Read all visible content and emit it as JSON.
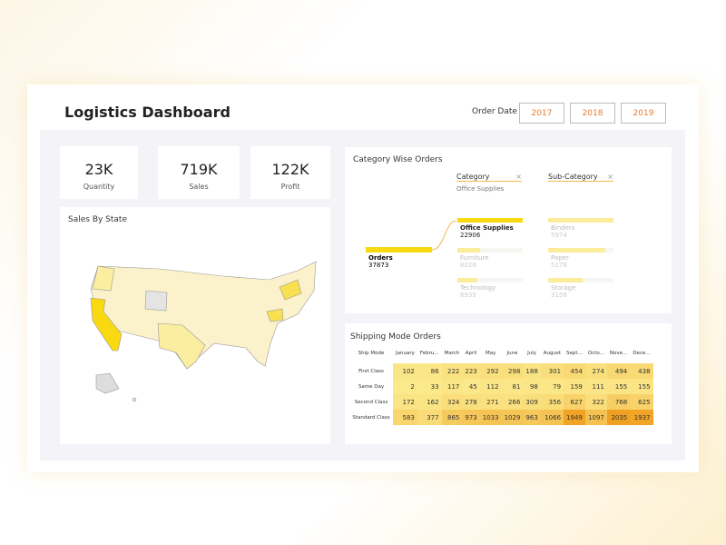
{
  "header": {
    "title": "Logistics Dashboard",
    "order_date_label": "Order Date",
    "years": [
      "2017",
      "2018",
      "2019"
    ]
  },
  "kpis": [
    {
      "value": "23K",
      "label": "Quantity"
    },
    {
      "value": "719K",
      "label": "Sales"
    },
    {
      "value": "122K",
      "label": "Profit"
    }
  ],
  "map": {
    "title": "Sales By State",
    "highlight_color": "#f9d90f",
    "base_color": "#fbf2cc"
  },
  "category": {
    "title": "Category Wise Orders",
    "root": {
      "label": "Orders",
      "value": "37873"
    },
    "filters": [
      {
        "label": "Category",
        "selected": "Office Supplies"
      },
      {
        "label": "Sub-Category",
        "selected": ""
      }
    ],
    "categories": [
      {
        "label": "Office Supplies",
        "value": "22906",
        "share": 1
      },
      {
        "label": "Furniture",
        "value": "8028",
        "share": 0.35
      },
      {
        "label": "Technology",
        "value": "6939",
        "share": 0.3
      }
    ],
    "subcategories": [
      {
        "label": "Binders",
        "value": "5974",
        "share": 1
      },
      {
        "label": "Paper",
        "value": "5178",
        "share": 0.87
      },
      {
        "label": "Storage",
        "value": "3158",
        "share": 0.53
      }
    ]
  },
  "shipping": {
    "title": "Shipping Mode Orders",
    "row_header": "Ship Mode",
    "months": [
      "January",
      "Febru...",
      "March",
      "April",
      "May",
      "June",
      "July",
      "August",
      "Sept...",
      "Octo...",
      "Nove...",
      "Dece..."
    ],
    "rows": [
      {
        "mode": "First Class",
        "values": [
          102,
          86,
          222,
          223,
          292,
          298,
          188,
          301,
          454,
          274,
          494,
          438
        ]
      },
      {
        "mode": "Same Day",
        "values": [
          2,
          33,
          117,
          45,
          112,
          81,
          98,
          79,
          159,
          111,
          155,
          155
        ]
      },
      {
        "mode": "Second Class",
        "values": [
          172,
          162,
          324,
          278,
          271,
          266,
          309,
          356,
          627,
          322,
          768,
          625
        ]
      },
      {
        "mode": "Standard Class",
        "values": [
          583,
          377,
          865,
          973,
          1033,
          1029,
          963,
          1066,
          1949,
          1097,
          2035,
          1937
        ]
      }
    ]
  }
}
